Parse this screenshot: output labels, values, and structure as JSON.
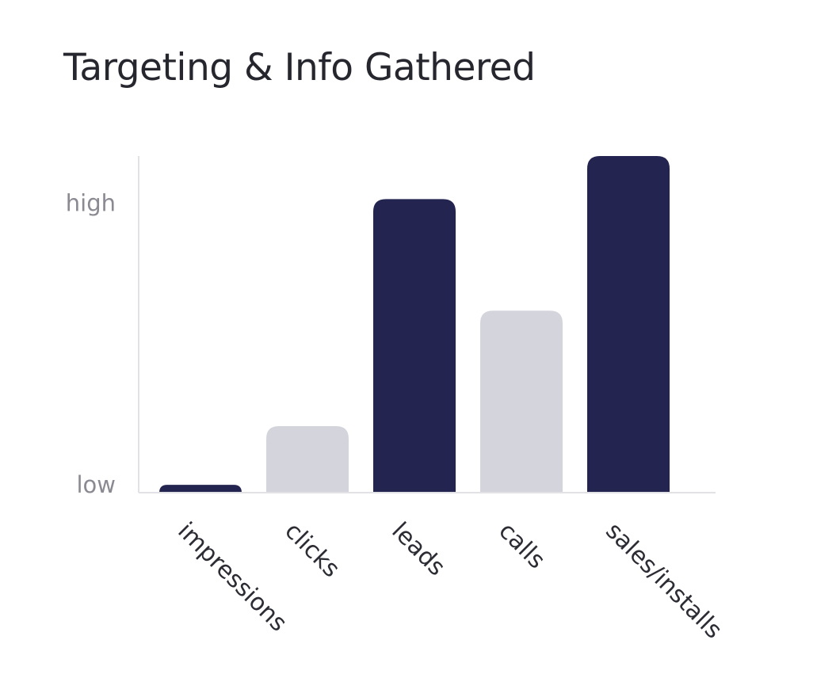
{
  "chart_data": {
    "type": "bar",
    "title": "Targeting & Info Gathered",
    "categories": [
      "impressions",
      "clicks",
      "leads",
      "calls",
      "sales/installs"
    ],
    "values": [
      4,
      34,
      150,
      93,
      172
    ],
    "ylim": [
      0,
      172
    ],
    "ytick_labels": [
      {
        "label": "high",
        "value": 148
      },
      {
        "label": "low",
        "value": 4
      }
    ],
    "grid": false,
    "legend": "none"
  },
  "colors": {
    "highlight_bar": "#242450",
    "muted_bar": "#d4d4dc",
    "axis": "#e2e2e6",
    "tick_label": "#8a8a92",
    "category_label": "#2c2c34",
    "title": "#26262e"
  },
  "bar_styles": [
    "highlight",
    "muted",
    "highlight",
    "muted",
    "highlight"
  ]
}
